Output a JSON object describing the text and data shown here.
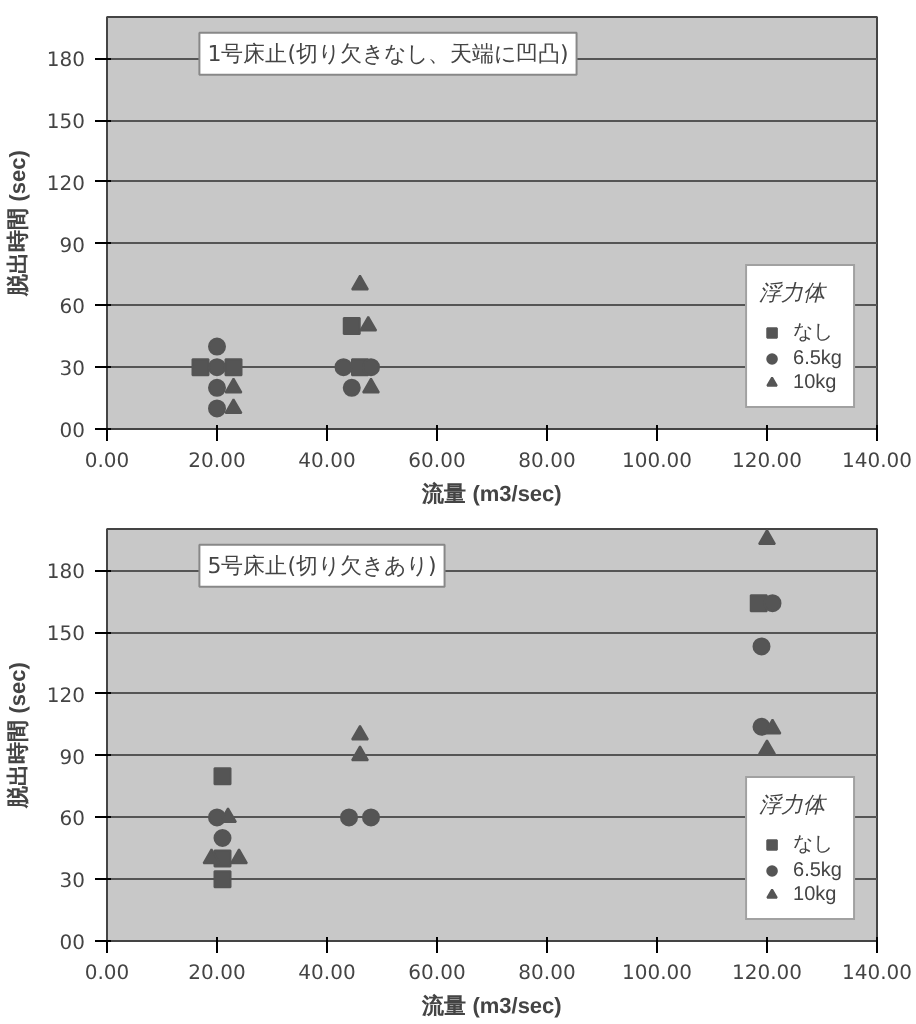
{
  "chart_data": [
    {
      "type": "scatter",
      "title": "1号床止(切り欠きなし、天端に凹凸)",
      "xlabel": "流量 (m3/sec)",
      "ylabel": "脱出時間 (sec)",
      "legend_title": "浮力体",
      "legend": "bottom right",
      "grid": "y",
      "xlim": [
        0,
        140
      ],
      "ylim": [
        0,
        200
      ],
      "xticks": [
        {
          "value": 0,
          "label": "0.00"
        },
        {
          "value": 20,
          "label": "20.00"
        },
        {
          "value": 40,
          "label": "40.00"
        },
        {
          "value": 60,
          "label": "60.00"
        },
        {
          "value": 80,
          "label": "80.00"
        },
        {
          "value": 100,
          "label": "100.00"
        },
        {
          "value": 120,
          "label": "120.00"
        },
        {
          "value": 140,
          "label": "140.00"
        }
      ],
      "yticks": [
        {
          "value": 0,
          "label": "00"
        },
        30,
        60,
        90,
        120,
        150,
        180
      ],
      "series": [
        {
          "name": "なし",
          "color": "#555555",
          "marker": "square",
          "x": [
            17,
            23,
            44.5,
            46
          ],
          "values": [
            30,
            30,
            50,
            30
          ]
        },
        {
          "name": "6.5kg",
          "color": "#555555",
          "marker": "circle",
          "x": [
            20,
            20,
            20,
            20,
            43,
            48,
            44.5
          ],
          "values": [
            40,
            30,
            20,
            10,
            30,
            30,
            20
          ]
        },
        {
          "name": "10kg",
          "color": "#555555",
          "marker": "triangle",
          "x": [
            23,
            23,
            46,
            47.5,
            48
          ],
          "values": [
            20,
            10,
            70,
            50,
            20
          ]
        }
      ]
    },
    {
      "type": "scatter",
      "title": "5号床止(切り欠きあり)",
      "xlabel": "流量 (m3/sec)",
      "ylabel": "脱出時間 (sec)",
      "legend_title": "浮力体",
      "legend": "bottom right",
      "grid": "y",
      "xlim": [
        0,
        140
      ],
      "ylim": [
        0,
        200
      ],
      "xticks": [
        {
          "value": 0,
          "label": "0.00"
        },
        {
          "value": 20,
          "label": "20.00"
        },
        {
          "value": 40,
          "label": "40.00"
        },
        {
          "value": 60,
          "label": "60.00"
        },
        {
          "value": 80,
          "label": "80.00"
        },
        {
          "value": 100,
          "label": "100.00"
        },
        {
          "value": 120,
          "label": "120.00"
        },
        {
          "value": 140,
          "label": "140.00"
        }
      ],
      "yticks": [
        {
          "value": 0,
          "label": "00"
        },
        30,
        60,
        90,
        120,
        150,
        180
      ],
      "series": [
        {
          "name": "なし",
          "color": "#555555",
          "marker": "square",
          "x": [
            21,
            21,
            21,
            118.5
          ],
          "values": [
            80,
            40,
            30,
            164
          ]
        },
        {
          "name": "6.5kg",
          "color": "#555555",
          "marker": "circle",
          "x": [
            20,
            21,
            44,
            48,
            121,
            119,
            119
          ],
          "values": [
            60,
            50,
            60,
            60,
            164,
            143,
            104
          ]
        },
        {
          "name": "10kg",
          "color": "#555555",
          "marker": "triangle",
          "x": [
            22,
            19,
            24,
            46,
            46,
            120,
            121,
            120
          ],
          "values": [
            60,
            40,
            40,
            100,
            90,
            195,
            103,
            93
          ]
        }
      ]
    }
  ]
}
